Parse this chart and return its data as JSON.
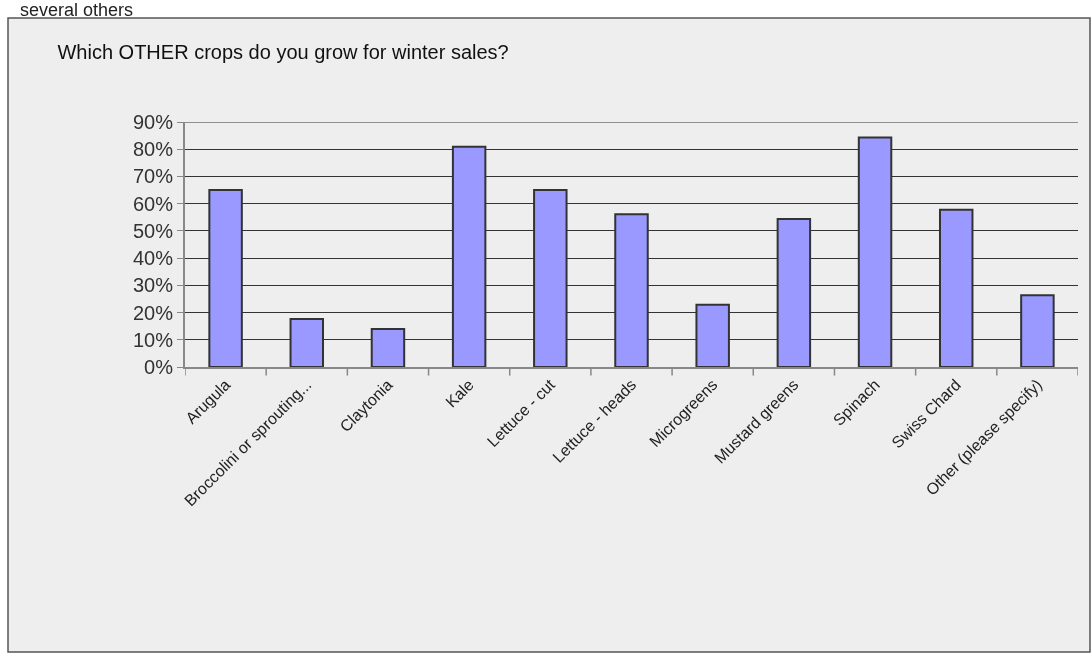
{
  "chart_data": {
    "type": "bar",
    "title": "Which OTHER crops do you grow for winter sales?",
    "annotations": [
      "several others"
    ],
    "categories": [
      "Arugula",
      "Broccolini or sprouting...",
      "Claytonia",
      "Kale",
      "Lettuce - cut",
      "Lettuce - heads",
      "Microgreens",
      "Mustard greens",
      "Spinach",
      "Swiss Chard",
      "Other (please specify)"
    ],
    "values": [
      65,
      17.6,
      14,
      80.9,
      65,
      56.1,
      22.9,
      54.4,
      84.3,
      57.8,
      26.4
    ],
    "color": "#9999ff",
    "ylim": [
      0,
      90
    ],
    "yticks": [
      {
        "value": 0,
        "label": "0%"
      },
      {
        "value": 10,
        "label": "10%"
      },
      {
        "value": 20,
        "label": "20%"
      },
      {
        "value": 30,
        "label": "30%"
      },
      {
        "value": 40,
        "label": "40%"
      },
      {
        "value": 50,
        "label": "50%"
      },
      {
        "value": 60,
        "label": "60%"
      },
      {
        "value": 70,
        "label": "70%"
      },
      {
        "value": 80,
        "label": "80%"
      },
      {
        "value": 90,
        "label": "90%"
      }
    ],
    "grid": "y"
  }
}
